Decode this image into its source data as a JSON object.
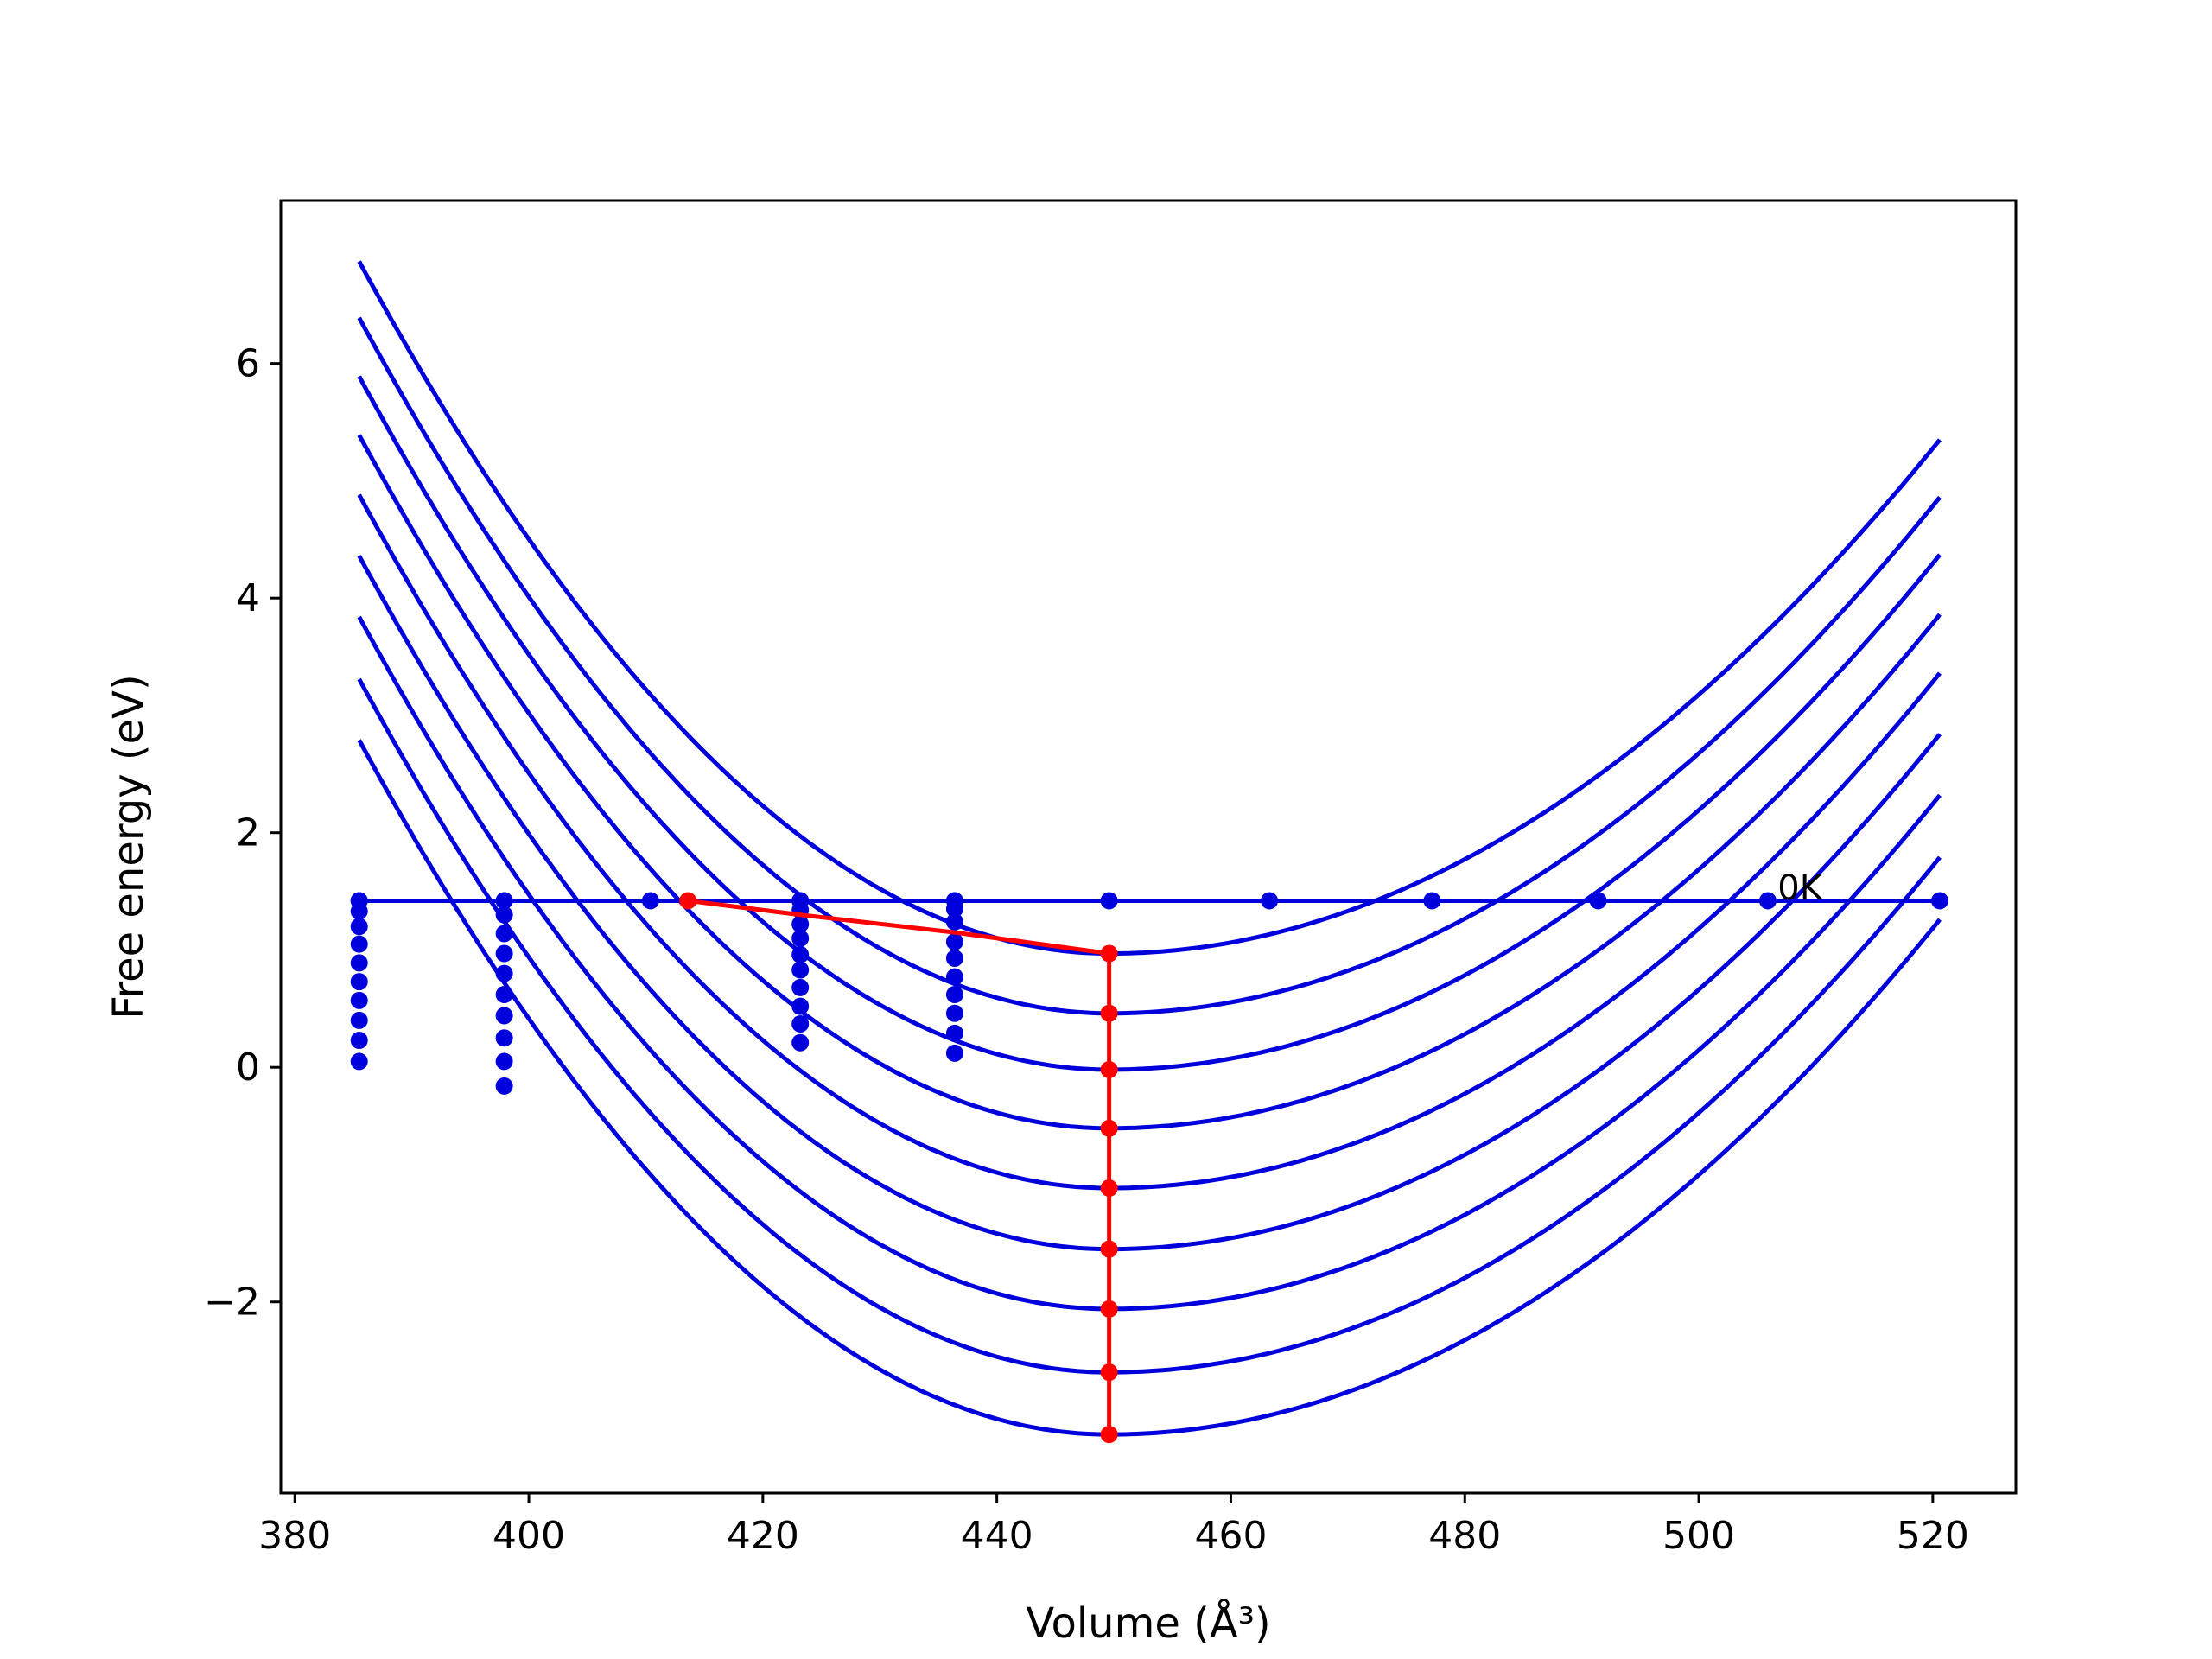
{
  "chart_data": {
    "type": "line",
    "title": "",
    "xlabel": "Volume (Å³)",
    "ylabel": "Free energy (eV)",
    "xlim": [
      378.8,
      527.1
    ],
    "ylim": [
      -3.63,
      7.39
    ],
    "xticks": [
      380,
      400,
      420,
      440,
      460,
      480,
      500,
      520
    ],
    "yticks": [
      -2,
      0,
      2,
      4,
      6
    ],
    "ytick_labels": [
      "−2",
      "0",
      "2",
      "4",
      "6"
    ],
    "grid": false,
    "legend": "none",
    "annotation": {
      "text": "0K",
      "x": 506.0,
      "y": 1.52
    },
    "colors": {
      "curves": "#0000dd",
      "highlight": "#ff0000",
      "axes": "#000000"
    },
    "curve_x_range": [
      385.5,
      520.6
    ],
    "curve_minimum_volume": 449.6,
    "curves": [
      {
        "min_energy": 0.97,
        "left_end": 6.87,
        "right_end": 5.35
      },
      {
        "min_energy": 0.46,
        "left_end": 6.39,
        "right_end": 4.86
      },
      {
        "min_energy": -0.02,
        "left_end": 5.89,
        "right_end": 4.37
      },
      {
        "min_energy": -0.52,
        "left_end": 5.39,
        "right_end": 3.86
      },
      {
        "min_energy": -1.03,
        "left_end": 4.88,
        "right_end": 3.36
      },
      {
        "min_energy": -1.55,
        "left_end": 4.36,
        "right_end": 2.84
      },
      {
        "min_energy": -2.06,
        "left_end": 3.84,
        "right_end": 2.32
      },
      {
        "min_energy": -2.6,
        "left_end": 3.31,
        "right_end": 1.79
      },
      {
        "min_energy": -3.13,
        "left_end": 2.79,
        "right_end": 1.26
      }
    ],
    "horizontal_line": {
      "y": 1.42,
      "x": [
        385.5,
        520.6
      ]
    },
    "horizontal_points": {
      "x": [
        385.5,
        397.9,
        410.4,
        423.2,
        436.4,
        449.6,
        463.3,
        477.2,
        491.4,
        505.9,
        520.6
      ],
      "y": 1.42
    },
    "point_columns": [
      {
        "x": 385.5,
        "y": [
          1.42,
          1.33,
          1.2,
          1.05,
          0.89,
          0.73,
          0.57,
          0.4,
          0.23,
          0.05
        ]
      },
      {
        "x": 397.9,
        "y": [
          1.42,
          1.3,
          1.14,
          0.97,
          0.8,
          0.62,
          0.44,
          0.25,
          0.05,
          -0.16
        ]
      },
      {
        "x": 423.2,
        "y": [
          1.42,
          1.34,
          1.22,
          1.1,
          0.96,
          0.83,
          0.68,
          0.52,
          0.37,
          0.21
        ]
      },
      {
        "x": 436.4,
        "y": [
          1.42,
          1.35,
          1.24,
          1.07,
          0.93,
          0.77,
          0.62,
          0.46,
          0.29,
          0.12
        ]
      }
    ],
    "red_path": {
      "x": [
        413.6,
        423.2,
        436.4,
        449.6
      ],
      "y": [
        1.42,
        1.3,
        1.15,
        0.97
      ]
    },
    "red_vertical": {
      "x": 449.6,
      "y": [
        0.97,
        0.46,
        -0.02,
        -0.52,
        -1.03,
        -1.55,
        -2.06,
        -2.6,
        -3.13
      ]
    }
  }
}
